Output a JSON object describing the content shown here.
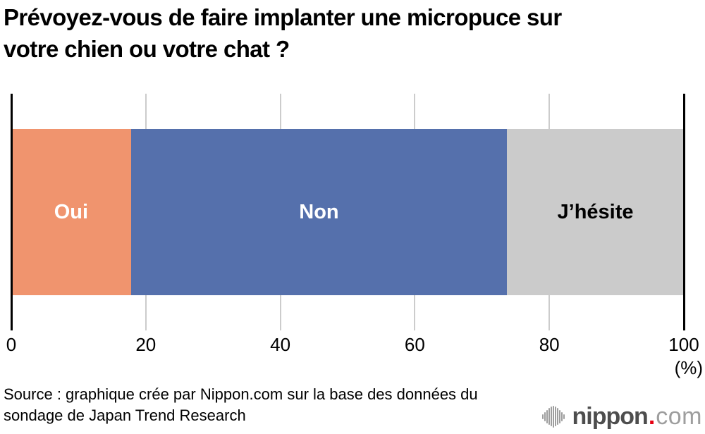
{
  "title_lines": [
    "Prévoyez-vous de faire implanter une micropuce sur",
    "votre chien ou votre chat ?"
  ],
  "chart_data": {
    "type": "bar",
    "orientation": "horizontal",
    "stacked": true,
    "title": "Prévoyez-vous de faire implanter une micropuce sur votre chien ou votre chat ?",
    "categories": [
      "Oui",
      "Non",
      "J’hésite"
    ],
    "values": [
      17.8,
      55.9,
      26.3
    ],
    "colors": [
      "#F0946E",
      "#5570AC",
      "#CBCBCB"
    ],
    "label_colors": [
      "#FFFFFF",
      "#FFFFFF",
      "#000000"
    ],
    "xlim": [
      0,
      100
    ],
    "xticks": [
      0,
      20,
      40,
      60,
      80,
      100
    ],
    "unit_label": "(%)",
    "grid": true,
    "legend": "none",
    "gridline_color": "#CCCCCC",
    "axis_edge_color": "#000000"
  },
  "source": {
    "line1": "Source : graphique crée par Nippon.com sur la base des données du",
    "line2": "sondage de Japan Trend Research"
  },
  "logo": {
    "word": "nippon",
    "dot": ".",
    "tld": "com",
    "word_color": "#4D4D4D",
    "dot_color": "#E60012",
    "tld_color": "#9E9E9E",
    "icon_color": "#9E9E9E"
  }
}
